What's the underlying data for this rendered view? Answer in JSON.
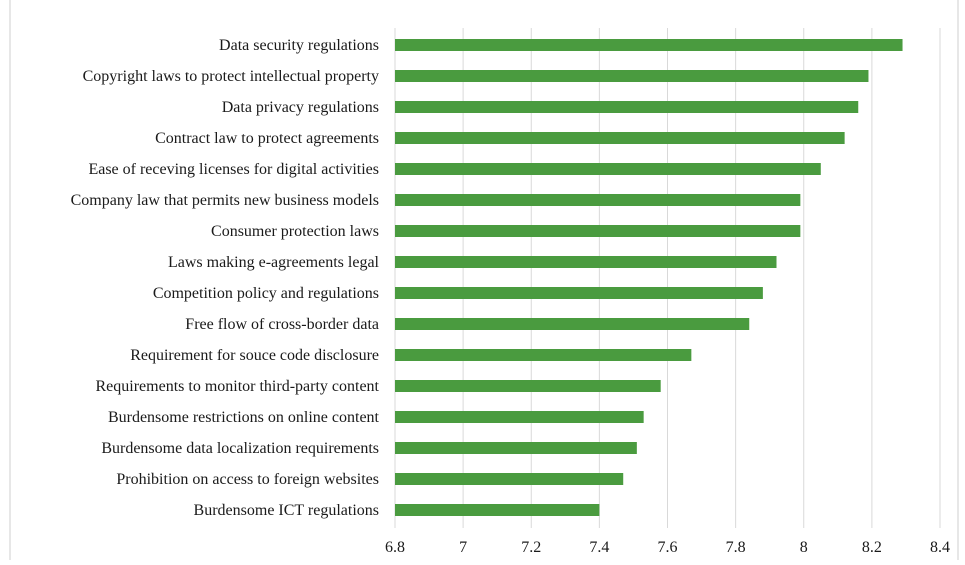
{
  "chart_data": {
    "type": "bar",
    "orientation": "horizontal",
    "categories": [
      "Data security regulations",
      "Copyright laws to protect intellectual property",
      "Data privacy regulations",
      "Contract law to protect agreements",
      "Ease of receving licenses for digital activities",
      "Company law that permits new business models",
      "Consumer protection laws",
      "Laws making e-agreements legal",
      "Competition policy and regulations",
      "Free flow of cross-border data",
      "Requirement for souce code disclosure",
      "Requirements to monitor third-party content",
      "Burdensome restrictions on online content",
      "Burdensome data localization requirements",
      "Prohibition on access to foreign websites",
      "Burdensome ICT regulations"
    ],
    "values": [
      8.29,
      8.19,
      8.16,
      8.12,
      8.05,
      7.99,
      7.99,
      7.92,
      7.88,
      7.84,
      7.67,
      7.58,
      7.53,
      7.51,
      7.47,
      7.4
    ],
    "xlim": [
      6.8,
      8.4
    ],
    "xticks": [
      6.8,
      7,
      7.2,
      7.4,
      7.6,
      7.8,
      8,
      8.2,
      8.4
    ],
    "xtick_labels": [
      "6.8",
      "7",
      "7.2",
      "7.4",
      "7.6",
      "7.8",
      "8",
      "8.2",
      "8.4"
    ],
    "bar_color": "#4a9b3f",
    "grid": "vertical",
    "title": "",
    "xlabel": "",
    "ylabel": ""
  }
}
